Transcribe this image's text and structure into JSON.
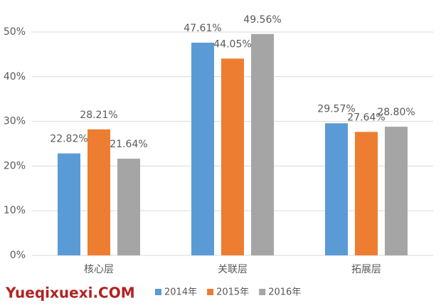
{
  "chart_data": {
    "type": "bar",
    "categories": [
      "核心层",
      "关联层",
      "拓展层"
    ],
    "series": [
      {
        "name": "2014年",
        "color": "#5b9bd5",
        "values": [
          22.82,
          47.61,
          29.57
        ],
        "value_labels": [
          "22.82%",
          "47.61%",
          "29.57%"
        ]
      },
      {
        "name": "2015年",
        "color": "#ed7d31",
        "values": [
          28.21,
          44.05,
          27.64
        ],
        "value_labels": [
          "28.21%",
          "44.05%",
          "27.64%"
        ]
      },
      {
        "name": "2016年",
        "color": "#a5a5a5",
        "values": [
          21.64,
          49.56,
          28.8
        ],
        "value_labels": [
          "21.64%",
          "49.56%",
          "28.80%"
        ]
      }
    ],
    "ylim": [
      0,
      50
    ],
    "yticks": [
      {
        "value": 0,
        "label": "0%"
      },
      {
        "value": 10,
        "label": "10%"
      },
      {
        "value": 20,
        "label": "20%"
      },
      {
        "value": 30,
        "label": "30%"
      },
      {
        "value": 40,
        "label": "40%"
      },
      {
        "value": 50,
        "label": "50%"
      }
    ],
    "grid": true,
    "legend": "bottom",
    "watermark": "Yueqixuexi.COM"
  }
}
